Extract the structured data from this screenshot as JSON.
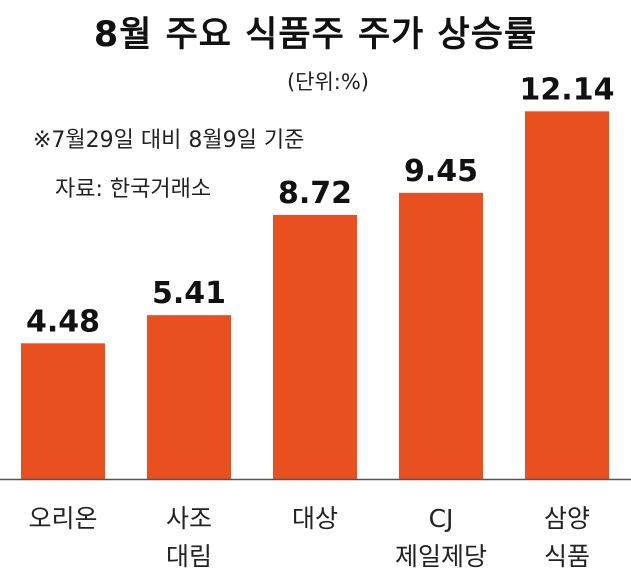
{
  "chart_data": {
    "type": "bar",
    "title": "8월 주요 식품주 주가 상승률",
    "unit_label": "(단위:%)",
    "note": "※7월29일 대비 8월9일 기준",
    "source": "자료: 한국거래소",
    "categories": [
      [
        "오리온"
      ],
      [
        "사조",
        "대림"
      ],
      [
        "대상"
      ],
      [
        "CJ",
        "제일제당"
      ],
      [
        "삼양",
        "식품"
      ]
    ],
    "values": [
      4.48,
      5.41,
      8.72,
      9.45,
      12.14
    ],
    "value_labels": [
      "4.48",
      "5.41",
      "8.72",
      "9.45",
      "12.14"
    ],
    "ylim": [
      0,
      14
    ],
    "grid": false,
    "bar_color": "#e8511f",
    "axis_color": "#555555"
  }
}
